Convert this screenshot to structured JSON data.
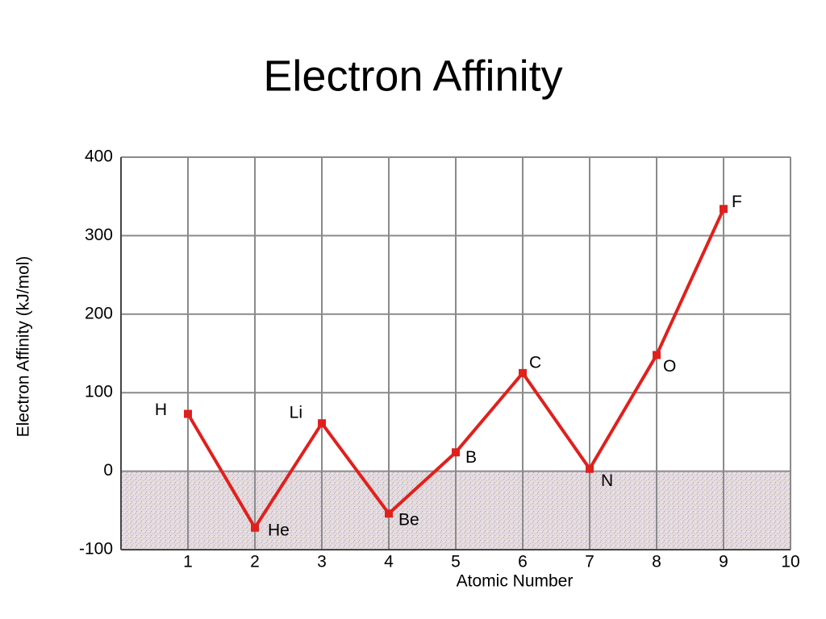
{
  "chart_data": {
    "type": "line",
    "title": "Electron Affinity",
    "x_label": "Atomic Number",
    "y_label": "Electron Affinity (kJ/mol)",
    "x": [
      1,
      2,
      3,
      4,
      5,
      6,
      7,
      8,
      9
    ],
    "series": [
      {
        "name": "Electron affinity",
        "color": "#e0201c",
        "values": [
          73,
          -72,
          61,
          -54,
          24,
          125,
          3,
          148,
          334
        ],
        "point_labels": [
          "H",
          "He",
          "Li",
          "Be",
          "B",
          "C",
          "N",
          "O",
          "F"
        ]
      }
    ],
    "xlim": [
      0,
      10
    ],
    "xticks": [
      1,
      2,
      3,
      4,
      5,
      6,
      7,
      8,
      9,
      10
    ],
    "ylim": [
      -100,
      400
    ],
    "yticks": [
      -100,
      0,
      100,
      200,
      300,
      400
    ],
    "grid": true
  }
}
